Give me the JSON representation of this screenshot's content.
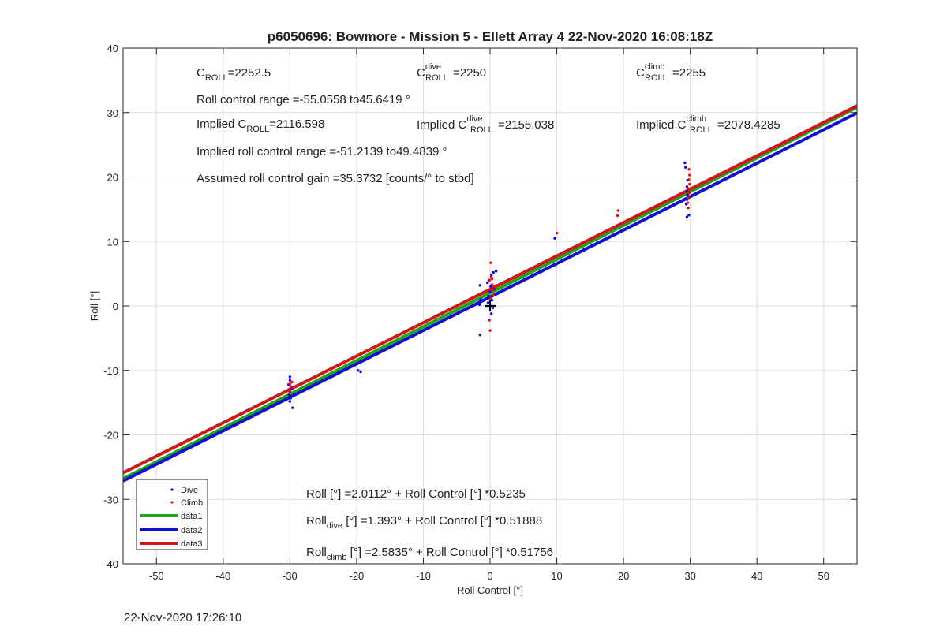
{
  "chart_data": {
    "type": "scatter",
    "title": "p6050696: Bowmore - Mission 5 - Ellett Array 4 22-Nov-2020 16:08:18Z",
    "xlabel": "Roll Control [°]",
    "ylabel": "Roll [°]",
    "xlim": [
      -55,
      55
    ],
    "ylim": [
      -40,
      40
    ],
    "xticks": [
      -50,
      -40,
      -30,
      -20,
      -10,
      0,
      10,
      20,
      30,
      40,
      50
    ],
    "yticks": [
      -40,
      -30,
      -20,
      -10,
      0,
      10,
      20,
      30,
      40
    ],
    "grid": true,
    "legend_position": "bottom-left",
    "series": [
      {
        "name": "Dive",
        "kind": "points",
        "color": "#0000ff",
        "points": [
          [
            -30,
            -11
          ],
          [
            -30,
            -11.5
          ],
          [
            -30.2,
            -12.2
          ],
          [
            -29.8,
            -12.8
          ],
          [
            -30,
            -13.3
          ],
          [
            -30.1,
            -13.8
          ],
          [
            -29.9,
            -14.3
          ],
          [
            -30,
            -14.8
          ],
          [
            -29.6,
            -15.8
          ],
          [
            -19.8,
            -10.0
          ],
          [
            -19.4,
            -10.2
          ],
          [
            -1.5,
            -4.5
          ],
          [
            -1.6,
            0.2
          ],
          [
            -1.4,
            1.0
          ],
          [
            -1.5,
            3.2
          ],
          [
            -0.3,
            0.5
          ],
          [
            -0.2,
            1.5
          ],
          [
            0,
            2.2
          ],
          [
            0.1,
            3.0
          ],
          [
            -0.1,
            4.0
          ],
          [
            0.2,
            4.8
          ],
          [
            0.4,
            -0.3
          ],
          [
            0.5,
            5.2
          ],
          [
            0.2,
            -1.2
          ],
          [
            0.3,
            0.9
          ],
          [
            0.6,
            2.6
          ],
          [
            -0.4,
            3.6
          ],
          [
            0.8,
            1.8
          ],
          [
            0.9,
            5.4
          ],
          [
            9.7,
            10.5
          ],
          [
            29.5,
            13.8
          ],
          [
            29.8,
            14.1
          ],
          [
            29.4,
            15.8
          ],
          [
            29.5,
            16.5
          ],
          [
            29.6,
            17.2
          ],
          [
            29.5,
            17.8
          ],
          [
            29.5,
            18.5
          ],
          [
            29.6,
            19.5
          ],
          [
            29.3,
            21.5
          ],
          [
            29.2,
            22.2
          ]
        ]
      },
      {
        "name": "Climb",
        "kind": "points",
        "color": "#ff0000",
        "points": [
          [
            -30,
            -12.1
          ],
          [
            -29.9,
            -12.5
          ],
          [
            -30.1,
            -12.9
          ],
          [
            -30,
            -13.2
          ],
          [
            -29.7,
            -11.8
          ],
          [
            0.1,
            6.7
          ],
          [
            -0.1,
            -2.2
          ],
          [
            0.0,
            -3.8
          ],
          [
            0.2,
            4.5
          ],
          [
            0.3,
            3.3
          ],
          [
            0.4,
            2.5
          ],
          [
            -0.2,
            3.9
          ],
          [
            0.5,
            1.7
          ],
          [
            0.1,
            1.2
          ],
          [
            0.6,
            3.0
          ],
          [
            0.3,
            4.2
          ],
          [
            10.0,
            11.3
          ],
          [
            19.1,
            14.0
          ],
          [
            19.2,
            14.8
          ],
          [
            29.6,
            16.0
          ],
          [
            29.7,
            16.8
          ],
          [
            29.8,
            17.5
          ],
          [
            29.7,
            18.2
          ],
          [
            29.9,
            18.9
          ],
          [
            29.8,
            19.6
          ],
          [
            29.9,
            20.3
          ],
          [
            29.8,
            21.2
          ],
          [
            29.7,
            15.2
          ]
        ]
      },
      {
        "name": "data1",
        "kind": "line",
        "color": "#1aa81a",
        "intercept": 2.0112,
        "slope": 0.5235,
        "x": [
          -55,
          55
        ]
      },
      {
        "name": "data2",
        "kind": "line",
        "color": "#1010d0",
        "intercept": 1.393,
        "slope": 0.51888,
        "x": [
          -55,
          55
        ]
      },
      {
        "name": "data3",
        "kind": "line",
        "color": "#d01818",
        "intercept": 2.5835,
        "slope": 0.51756,
        "x": [
          -55,
          55
        ]
      }
    ],
    "marker": {
      "symbol": "+",
      "x": 0,
      "y": 0,
      "color": "#000000"
    }
  },
  "annotations": {
    "croll": {
      "main": "C",
      "sub": "ROLL",
      "tail": "=2252.5"
    },
    "croll_dive": {
      "main": "C",
      "sup": "dive",
      "sub": "ROLL",
      "tail": " =2250"
    },
    "croll_climb": {
      "main": "C",
      "sup": "climb",
      "sub": "ROLL",
      "tail": " =2255"
    },
    "roll_range": "Roll control range =-55.0558 to45.6419 °",
    "implied": {
      "prefix": "Implied C",
      "sub": "ROLL",
      "tail": "=2116.598"
    },
    "implied_dive": {
      "prefix": "Implied C",
      "sup": "dive",
      "sub": "ROLL",
      "tail": " =2155.038"
    },
    "implied_climb": {
      "prefix": "Implied C",
      "sup": "climb",
      "sub": "ROLL",
      "tail": " =2078.4285"
    },
    "implied_range": "Implied roll control range =-51.2139 to49.4839 °",
    "gain": "Assumed roll control gain =35.3732 [counts/° to stbd]",
    "fit_all": "Roll [°] =2.0112° + Roll Control [°] *0.5235",
    "fit_dive": {
      "main": "Roll",
      "sub": "dive",
      "tail": " [°] =1.393° + Roll Control [°] *0.51888"
    },
    "fit_climb": {
      "main": "Roll",
      "sub": "climb",
      "tail": " [°] =2.5835° + Roll Control [°] *0.51756"
    }
  },
  "footer": {
    "timestamp": "22-Nov-2020 17:26:10"
  }
}
